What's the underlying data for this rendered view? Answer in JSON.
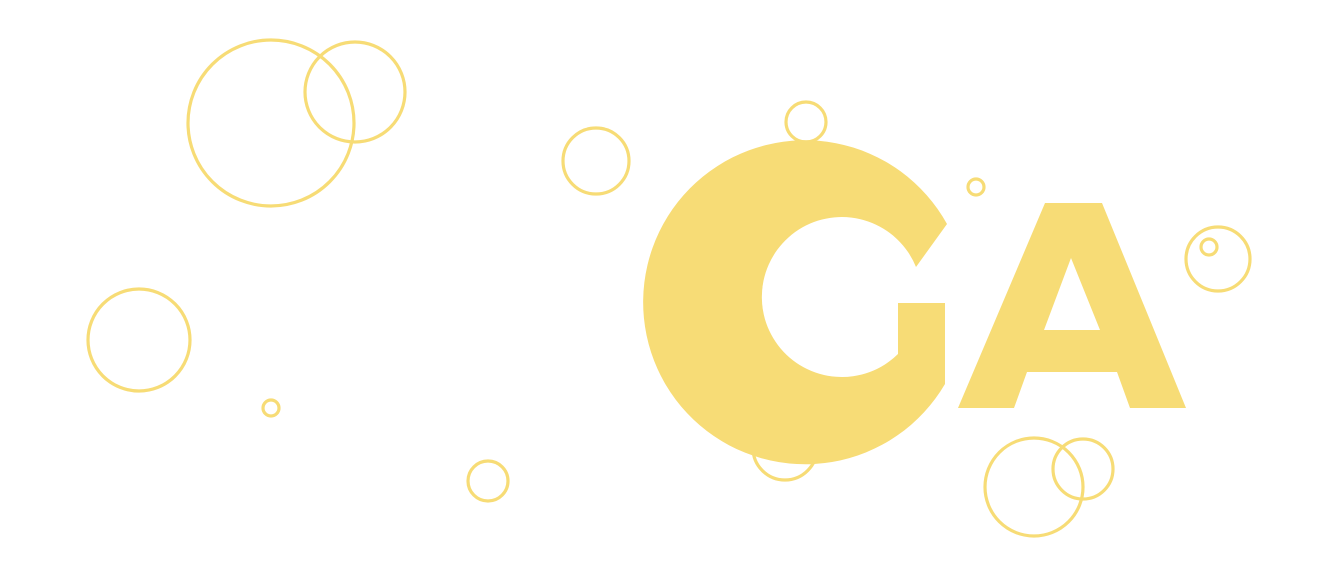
{
  "logo": {
    "text": "GA",
    "color": "#f7dc76"
  },
  "decoration": {
    "bubble_color": "#f7dc76",
    "icon": "bubble-circle-icon"
  }
}
